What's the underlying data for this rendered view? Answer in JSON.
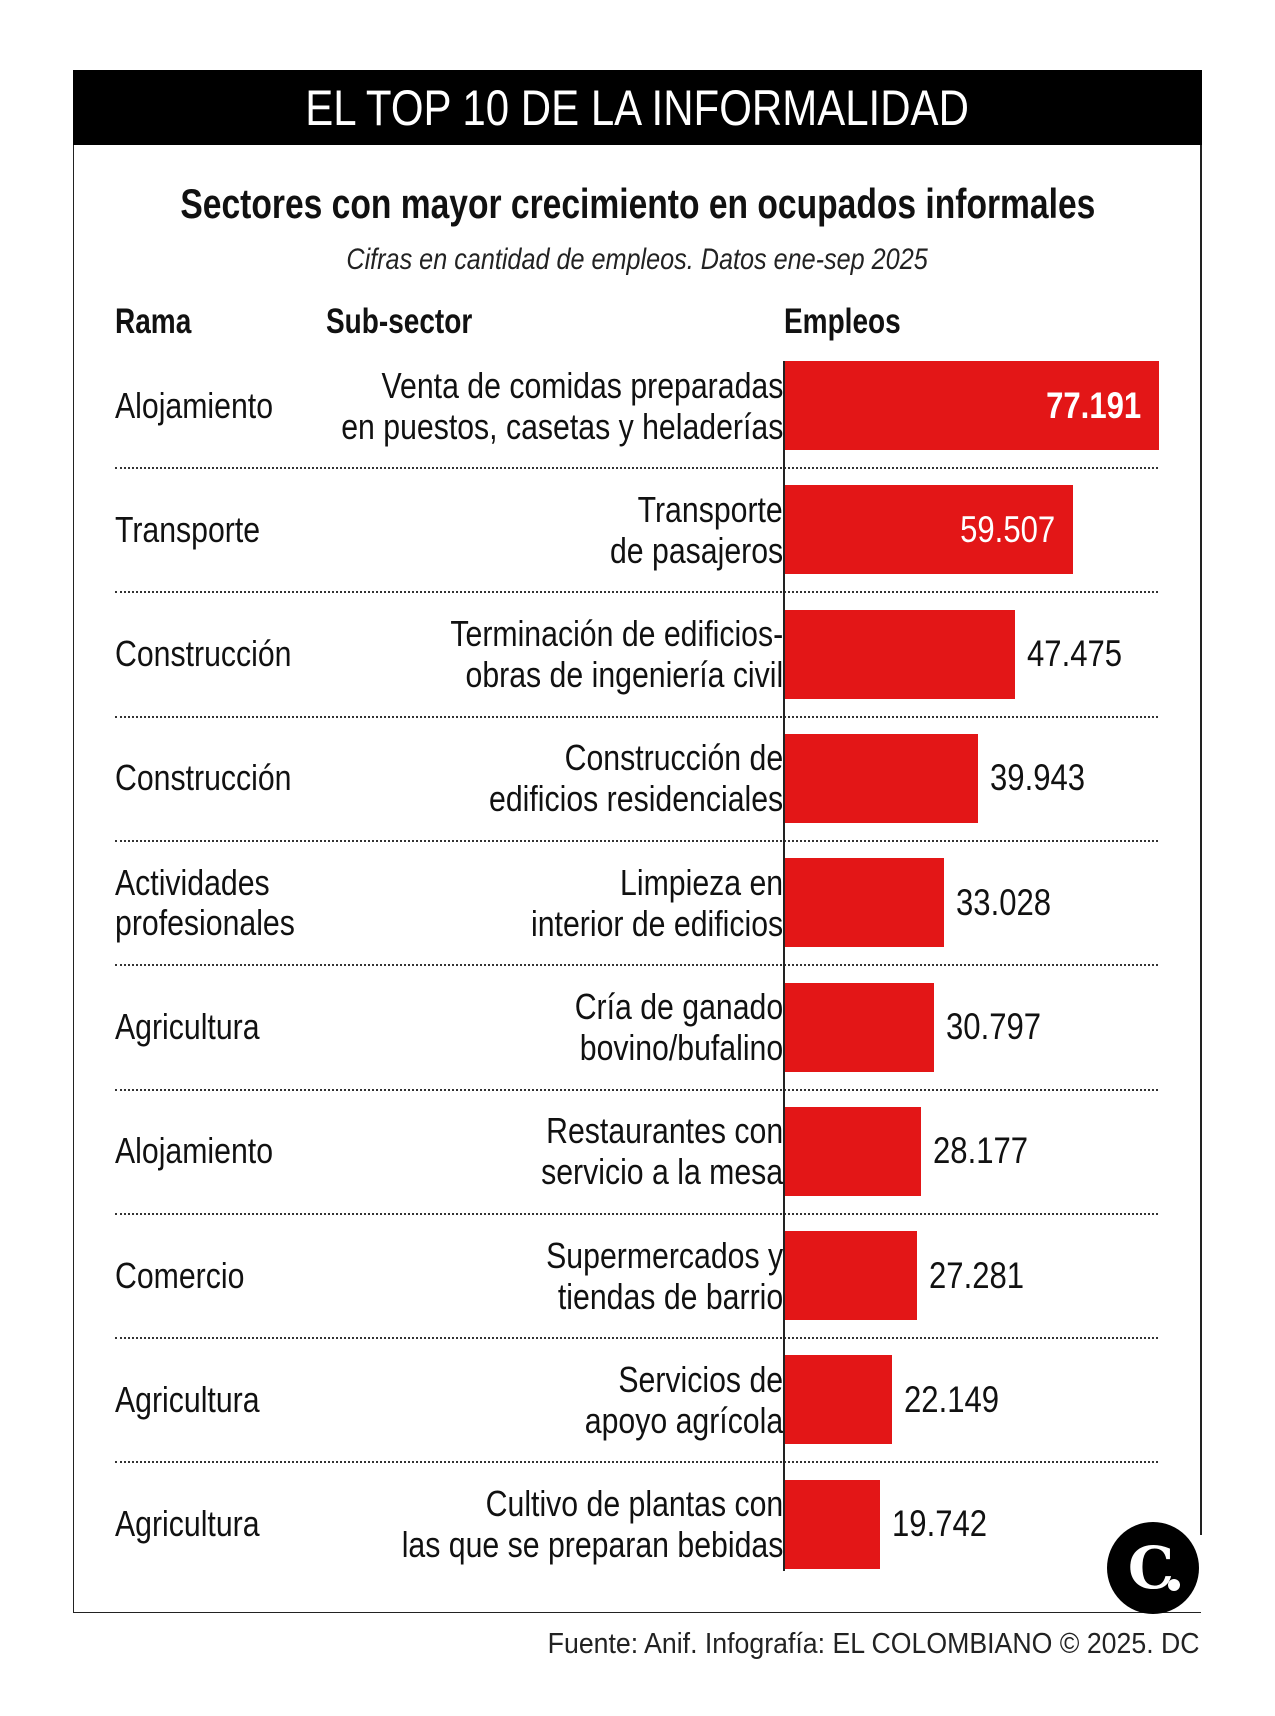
{
  "header": {
    "title": "EL TOP 10 DE LA INFORMALIDAD"
  },
  "chart_data": {
    "type": "bar",
    "orientation": "horizontal",
    "title": "Sectores con mayor crecimiento en ocupados informales",
    "subtitle": "Cifras en cantidad de empleos. Datos ene-sep 2025",
    "columns": [
      "Rama",
      "Sub-sector",
      "Empleos"
    ],
    "bar_color": "#e31617",
    "rows": [
      {
        "rama": [
          "Alojamiento"
        ],
        "subsector": [
          "Venta de comidas preparadas",
          "en puestos, casetas y heladerías"
        ],
        "value": 77191,
        "label": "77.191"
      },
      {
        "rama": [
          "Transporte"
        ],
        "subsector": [
          "Transporte",
          "de pasajeros"
        ],
        "value": 59507,
        "label": "59.507"
      },
      {
        "rama": [
          "Construcción"
        ],
        "subsector": [
          "Terminación de edificios-",
          "obras de ingeniería civil"
        ],
        "value": 47475,
        "label": "47.475"
      },
      {
        "rama": [
          "Construcción"
        ],
        "subsector": [
          "Construcción de",
          "edificios residenciales"
        ],
        "value": 39943,
        "label": "39.943"
      },
      {
        "rama": [
          "Actividades",
          "profesionales"
        ],
        "subsector": [
          "Limpieza en",
          "interior de edificios"
        ],
        "value": 33028,
        "label": "33.028"
      },
      {
        "rama": [
          "Agricultura"
        ],
        "subsector": [
          "Cría de ganado",
          "bovino/bufalino"
        ],
        "value": 30797,
        "label": "30.797"
      },
      {
        "rama": [
          "Alojamiento"
        ],
        "subsector": [
          "Restaurantes con",
          "servicio a la mesa"
        ],
        "value": 28177,
        "label": "28.177"
      },
      {
        "rama": [
          "Comercio"
        ],
        "subsector": [
          "Supermercados y",
          "tiendas de barrio"
        ],
        "value": 27281,
        "label": "27.281"
      },
      {
        "rama": [
          "Agricultura"
        ],
        "subsector": [
          "Servicios de",
          "apoyo agrícola"
        ],
        "value": 22149,
        "label": "22.149"
      },
      {
        "rama": [
          "Agricultura"
        ],
        "subsector": [
          "Cultivo de plantas con",
          "las que se preparan bebidas"
        ],
        "value": 19742,
        "label": "19.742"
      }
    ]
  },
  "footer": {
    "source": "Fuente: Anif. Infografía: EL COLOMBIANO © 2025. DC"
  },
  "logo": {
    "text": "C."
  }
}
